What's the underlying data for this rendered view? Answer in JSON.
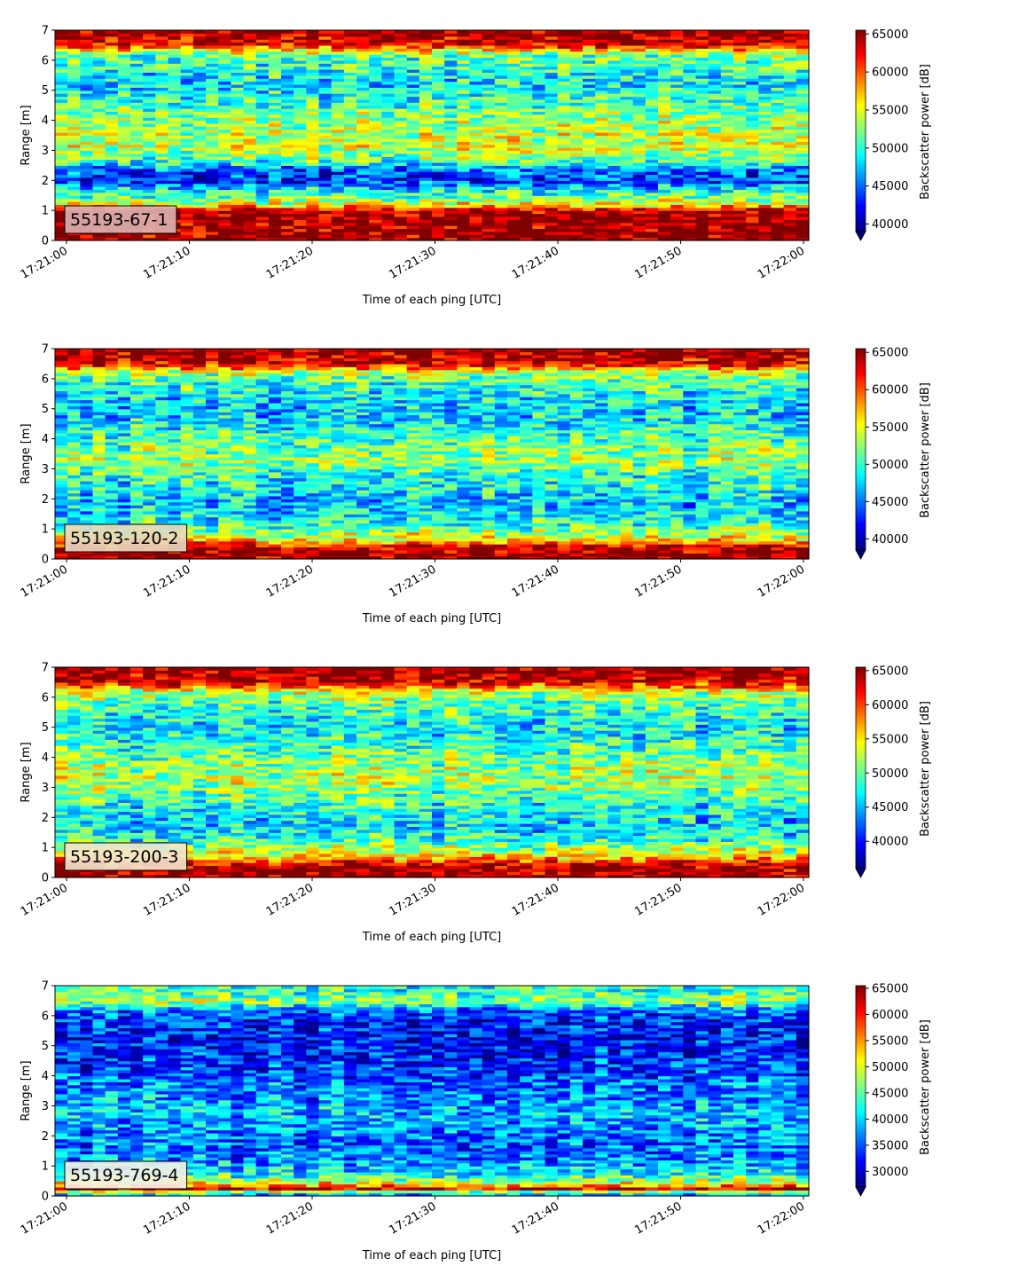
{
  "chart_data": [
    {
      "type": "heatmap",
      "label": "55193-67-1",
      "xlabel": "Time of each ping [UTC]",
      "ylabel": "Range [m]",
      "x_ticks": [
        "17:21:00",
        "17:21:10",
        "17:21:20",
        "17:21:30",
        "17:21:40",
        "17:21:50",
        "17:22:00"
      ],
      "y_ticks": [
        "0",
        "1",
        "2",
        "3",
        "4",
        "5",
        "6",
        "7"
      ],
      "ylim": [
        0,
        7
      ],
      "colorbar_label": "Backscatter power [dB]",
      "colorbar_ticks": [
        "40000",
        "45000",
        "50000",
        "55000",
        "60000",
        "65000"
      ],
      "clim": [
        39000,
        65500
      ],
      "colormap": "jet",
      "label_box_color": "#dbb3b3",
      "profile": [
        {
          "range": 0.1,
          "value": 65000
        },
        {
          "range": 0.5,
          "value": 65000
        },
        {
          "range": 1.0,
          "value": 64500
        },
        {
          "range": 1.2,
          "value": 55000
        },
        {
          "range": 1.6,
          "value": 50000
        },
        {
          "range": 2.0,
          "value": 43500
        },
        {
          "range": 2.3,
          "value": 44000
        },
        {
          "range": 2.7,
          "value": 51500
        },
        {
          "range": 3.2,
          "value": 54500
        },
        {
          "range": 3.7,
          "value": 53500
        },
        {
          "range": 4.2,
          "value": 52000
        },
        {
          "range": 4.7,
          "value": 50000
        },
        {
          "range": 5.2,
          "value": 48000
        },
        {
          "range": 5.7,
          "value": 50000
        },
        {
          "range": 6.2,
          "value": 51500
        },
        {
          "range": 6.5,
          "value": 62000
        },
        {
          "range": 6.9,
          "value": 65000
        }
      ]
    },
    {
      "type": "heatmap",
      "label": "55193-120-2",
      "xlabel": "Time of each ping [UTC]",
      "ylabel": "Range [m]",
      "x_ticks": [
        "17:21:00",
        "17:21:10",
        "17:21:20",
        "17:21:30",
        "17:21:40",
        "17:21:50",
        "17:22:00"
      ],
      "y_ticks": [
        "0",
        "1",
        "2",
        "3",
        "4",
        "5",
        "6",
        "7"
      ],
      "ylim": [
        0,
        7
      ],
      "colorbar_label": "Backscatter power [dB]",
      "colorbar_ticks": [
        "40000",
        "45000",
        "50000",
        "55000",
        "60000",
        "65000"
      ],
      "clim": [
        38500,
        65500
      ],
      "colormap": "jet",
      "label_box_color": "#e8d8c0",
      "profile": [
        {
          "range": 0.1,
          "value": 65000
        },
        {
          "range": 0.4,
          "value": 64000
        },
        {
          "range": 0.7,
          "value": 55000
        },
        {
          "range": 1.2,
          "value": 49500
        },
        {
          "range": 1.8,
          "value": 47000
        },
        {
          "range": 2.3,
          "value": 48500
        },
        {
          "range": 2.8,
          "value": 50000
        },
        {
          "range": 3.3,
          "value": 53000
        },
        {
          "range": 3.8,
          "value": 51500
        },
        {
          "range": 4.3,
          "value": 49500
        },
        {
          "range": 4.8,
          "value": 47500
        },
        {
          "range": 5.3,
          "value": 48000
        },
        {
          "range": 5.8,
          "value": 50000
        },
        {
          "range": 6.2,
          "value": 53000
        },
        {
          "range": 6.5,
          "value": 63000
        },
        {
          "range": 6.9,
          "value": 65000
        }
      ]
    },
    {
      "type": "heatmap",
      "label": "55193-200-3",
      "xlabel": "Time of each ping [UTC]",
      "ylabel": "Range [m]",
      "x_ticks": [
        "17:21:00",
        "17:21:10",
        "17:21:20",
        "17:21:30",
        "17:21:40",
        "17:21:50",
        "17:22:00"
      ],
      "y_ticks": [
        "0",
        "1",
        "2",
        "3",
        "4",
        "5",
        "6",
        "7"
      ],
      "ylim": [
        0,
        7
      ],
      "colorbar_label": "Backscatter power [dB]",
      "colorbar_ticks": [
        "40000",
        "45000",
        "50000",
        "55000",
        "60000",
        "65000"
      ],
      "clim": [
        36000,
        65500
      ],
      "colormap": "jet",
      "label_box_color": "#f2e6cf",
      "profile": [
        {
          "range": 0.1,
          "value": 65000
        },
        {
          "range": 0.4,
          "value": 64000
        },
        {
          "range": 0.7,
          "value": 56000
        },
        {
          "range": 1.2,
          "value": 48500
        },
        {
          "range": 1.8,
          "value": 46000
        },
        {
          "range": 2.3,
          "value": 47500
        },
        {
          "range": 2.8,
          "value": 50000
        },
        {
          "range": 3.3,
          "value": 52500
        },
        {
          "range": 3.8,
          "value": 51000
        },
        {
          "range": 4.3,
          "value": 49000
        },
        {
          "range": 4.8,
          "value": 47000
        },
        {
          "range": 5.3,
          "value": 47500
        },
        {
          "range": 5.8,
          "value": 49500
        },
        {
          "range": 6.2,
          "value": 53000
        },
        {
          "range": 6.5,
          "value": 63000
        },
        {
          "range": 6.9,
          "value": 65000
        }
      ]
    },
    {
      "type": "heatmap",
      "label": "55193-769-4",
      "xlabel": "Time of each ping [UTC]",
      "ylabel": "Range [m]",
      "x_ticks": [
        "17:21:00",
        "17:21:10",
        "17:21:20",
        "17:21:30",
        "17:21:40",
        "17:21:50",
        "17:22:00"
      ],
      "y_ticks": [
        "0",
        "1",
        "2",
        "3",
        "4",
        "5",
        "6",
        "7"
      ],
      "ylim": [
        0,
        7
      ],
      "colorbar_label": "Backscatter power [dB]",
      "colorbar_ticks": [
        "30000",
        "35000",
        "40000",
        "45000",
        "50000",
        "55000",
        "60000",
        "65000"
      ],
      "clim": [
        27000,
        65500
      ],
      "colormap": "jet",
      "label_box_color": "#f5f0e8",
      "profile": [
        {
          "range": 0.1,
          "value": 40000
        },
        {
          "range": 0.25,
          "value": 62000
        },
        {
          "range": 0.4,
          "value": 52000
        },
        {
          "range": 0.7,
          "value": 42000
        },
        {
          "range": 1.2,
          "value": 37000
        },
        {
          "range": 1.8,
          "value": 36000
        },
        {
          "range": 2.3,
          "value": 37500
        },
        {
          "range": 2.8,
          "value": 39000
        },
        {
          "range": 3.3,
          "value": 37000
        },
        {
          "range": 3.8,
          "value": 36000
        },
        {
          "range": 4.3,
          "value": 34000
        },
        {
          "range": 4.8,
          "value": 32500
        },
        {
          "range": 5.3,
          "value": 32000
        },
        {
          "range": 5.8,
          "value": 33000
        },
        {
          "range": 6.2,
          "value": 36000
        },
        {
          "range": 6.5,
          "value": 48000
        },
        {
          "range": 6.8,
          "value": 43000
        }
      ]
    }
  ]
}
